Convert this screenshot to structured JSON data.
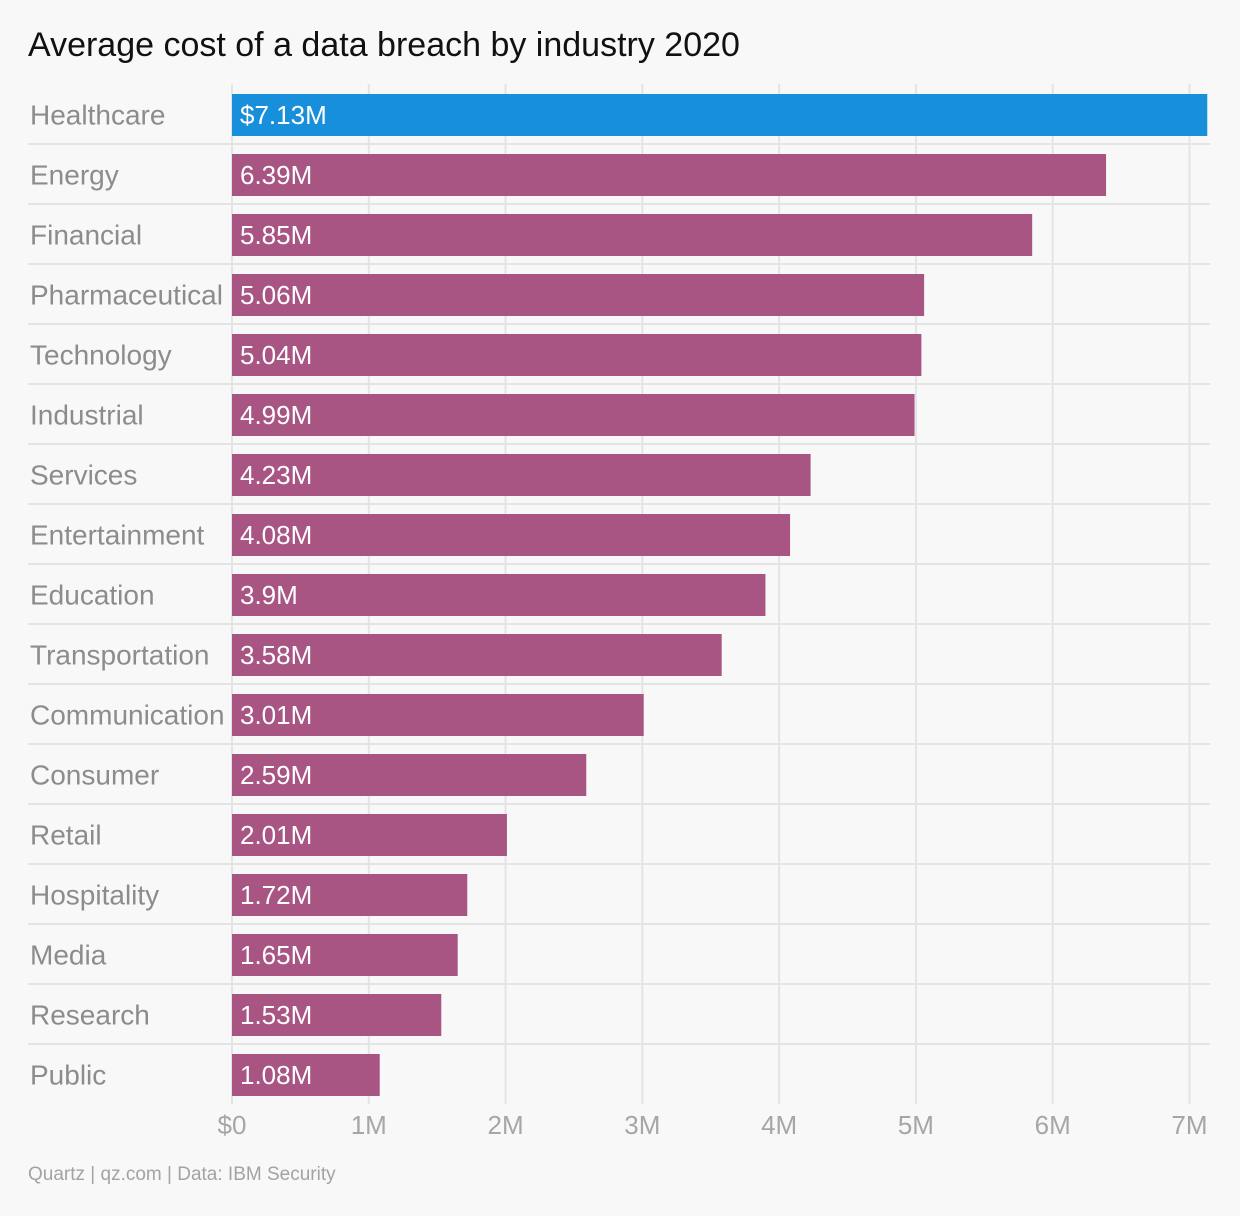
{
  "title": "Average cost of a data breach by industry 2020",
  "source": "Quartz | qz.com | Data: IBM Security",
  "colors": {
    "highlight": "#178fdb",
    "bar": "#a85583",
    "background": "#f8f8f8",
    "grid": "#e4e4e4"
  },
  "chart_data": {
    "type": "bar",
    "orientation": "horizontal",
    "title": "Average cost of a data breach by industry 2020",
    "xlabel": "",
    "ylabel": "",
    "xlim": [
      0,
      7150000
    ],
    "x_ticks": [
      0,
      1000000,
      2000000,
      3000000,
      4000000,
      5000000,
      6000000,
      7000000
    ],
    "x_tick_labels": [
      "$0",
      "1M",
      "2M",
      "3M",
      "4M",
      "5M",
      "6M",
      "7M"
    ],
    "grid": true,
    "categories": [
      "Healthcare",
      "Energy",
      "Financial",
      "Pharmaceutical",
      "Technology",
      "Industrial",
      "Services",
      "Entertainment",
      "Education",
      "Transportation",
      "Communication",
      "Consumer",
      "Retail",
      "Hospitality",
      "Media",
      "Research",
      "Public"
    ],
    "values": [
      7130000,
      6390000,
      5850000,
      5060000,
      5040000,
      4990000,
      4230000,
      4080000,
      3900000,
      3580000,
      3010000,
      2590000,
      2010000,
      1720000,
      1650000,
      1530000,
      1080000
    ],
    "data_labels": [
      "$7.13M",
      "6.39M",
      "5.85M",
      "5.06M",
      "5.04M",
      "4.99M",
      "4.23M",
      "4.08M",
      "3.9M",
      "3.58M",
      "3.01M",
      "2.59M",
      "2.01M",
      "1.72M",
      "1.65M",
      "1.53M",
      "1.08M"
    ],
    "highlighted_category": "Healthcare"
  }
}
